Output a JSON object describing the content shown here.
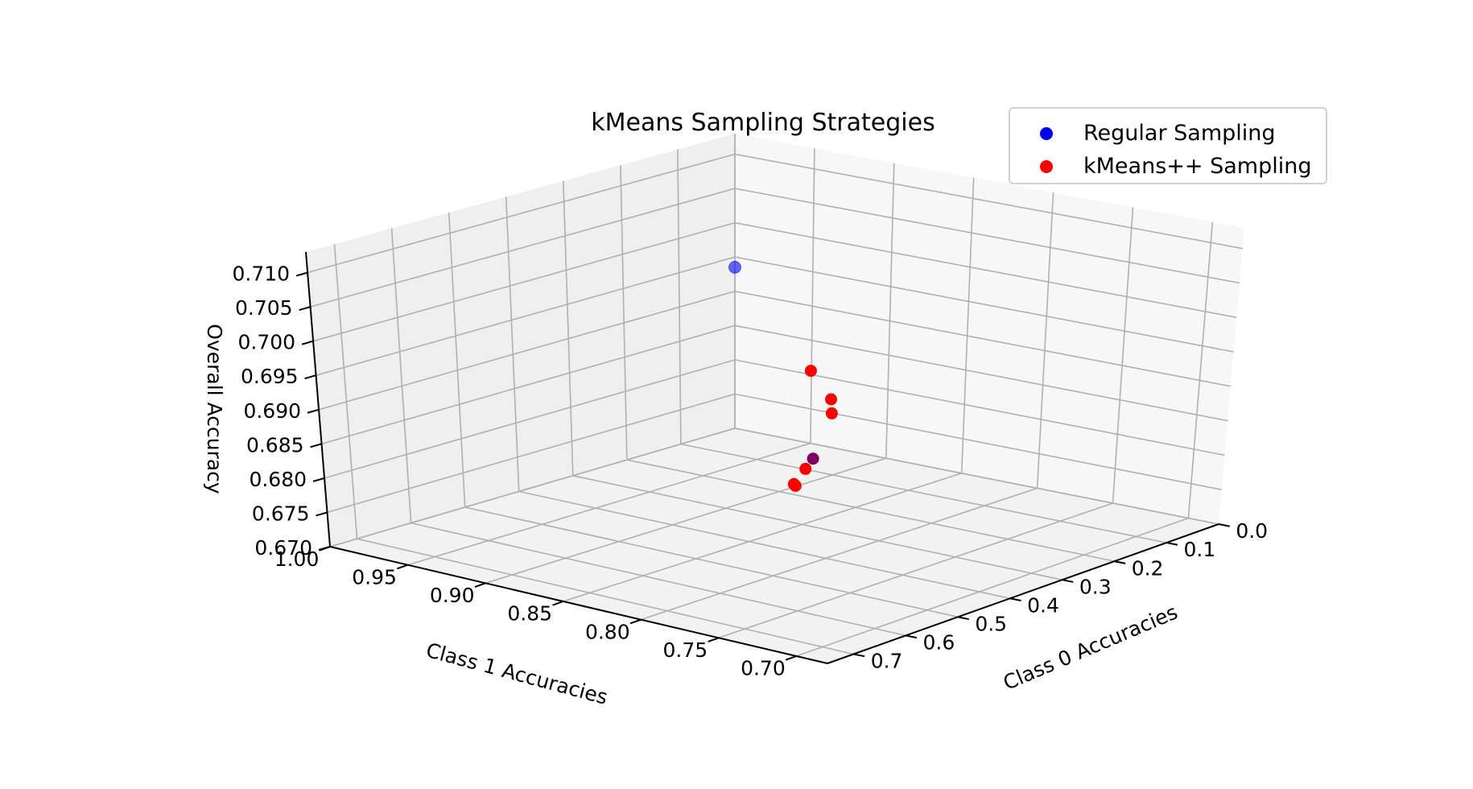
{
  "chart_data": {
    "type": "scatter",
    "projection": "3d",
    "title": "kMeans Sampling Strategies",
    "xlabel": "Class 0 Accuracies",
    "ylabel": "Class 1 Accuracies",
    "zlabel": "Overall Accuracy",
    "xticks": [
      "0.0",
      "0.1",
      "0.2",
      "0.3",
      "0.4",
      "0.5",
      "0.6",
      "0.7"
    ],
    "yticks": [
      "0.70",
      "0.75",
      "0.80",
      "0.85",
      "0.90",
      "0.95",
      "1.00"
    ],
    "zticks": [
      "0.670",
      "0.675",
      "0.680",
      "0.685",
      "0.690",
      "0.695",
      "0.700",
      "0.705",
      "0.710"
    ],
    "xlim": [
      0.0,
      0.75
    ],
    "ylim": [
      0.68,
      1.0
    ],
    "zlim": [
      0.67,
      0.713
    ],
    "grid": true,
    "legend_position": "top-right",
    "series": [
      {
        "name": "Regular Sampling",
        "color": "#0000ff",
        "points": [
          {
            "x": 0.0,
            "y": 1.0,
            "z": 0.6935
          }
        ]
      },
      {
        "name": "kMeans++ Sampling",
        "color": "#ff0000",
        "points": [
          {
            "x": 0.701,
            "y": 0.7,
            "z": 0.7105
          },
          {
            "x": 0.706,
            "y": 0.686,
            "z": 0.7072
          },
          {
            "x": 0.692,
            "y": 0.691,
            "z": 0.7045
          },
          {
            "x": 0.748,
            "y": 0.689,
            "z": 0.698
          },
          {
            "x": 0.745,
            "y": 0.698,
            "z": 0.6952
          },
          {
            "x": 0.745,
            "y": 0.697,
            "z": 0.695
          },
          {
            "x": 0.742,
            "y": 0.686,
            "z": 0.6995
          }
        ]
      }
    ],
    "overlap_color": "#800060"
  }
}
